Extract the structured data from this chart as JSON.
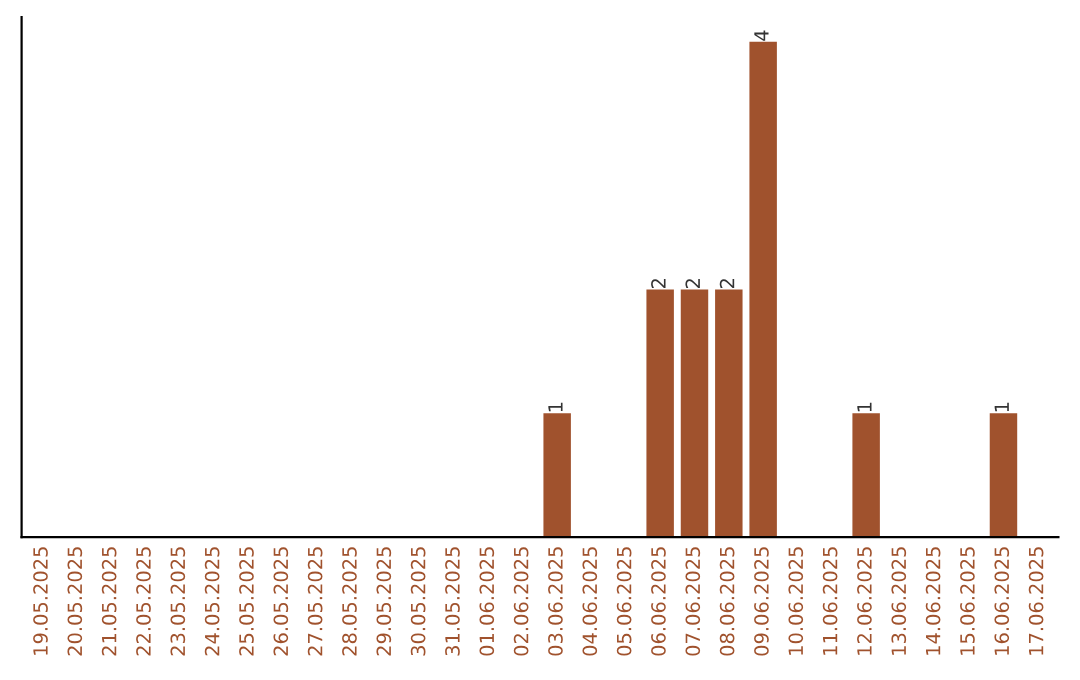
{
  "chart_data": {
    "type": "bar",
    "categories": [
      "19.05.2025",
      "20.05.2025",
      "21.05.2025",
      "22.05.2025",
      "23.05.2025",
      "24.05.2025",
      "25.05.2025",
      "26.05.2025",
      "27.05.2025",
      "28.05.2025",
      "29.05.2025",
      "30.05.2025",
      "31.05.2025",
      "01.06.2025",
      "02.06.2025",
      "03.06.2025",
      "04.06.2025",
      "05.06.2025",
      "06.06.2025",
      "07.06.2025",
      "08.06.2025",
      "09.06.2025",
      "10.06.2025",
      "11.06.2025",
      "12.06.2025",
      "13.06.2025",
      "14.06.2025",
      "15.06.2025",
      "16.06.2025",
      "17.06.2025"
    ],
    "values": [
      null,
      null,
      null,
      null,
      null,
      null,
      null,
      null,
      null,
      null,
      null,
      null,
      null,
      null,
      null,
      1,
      null,
      null,
      2,
      2,
      2,
      4,
      null,
      null,
      1,
      null,
      null,
      null,
      1,
      null
    ],
    "value_labels": [
      null,
      null,
      null,
      null,
      null,
      null,
      null,
      null,
      null,
      null,
      null,
      null,
      null,
      null,
      null,
      "1",
      null,
      null,
      "2",
      "2",
      "2",
      "4",
      null,
      null,
      "1",
      null,
      null,
      null,
      "1",
      null
    ],
    "color": "#a0522d",
    "tick_labels": "x",
    "grid": false,
    "legend": false
  }
}
